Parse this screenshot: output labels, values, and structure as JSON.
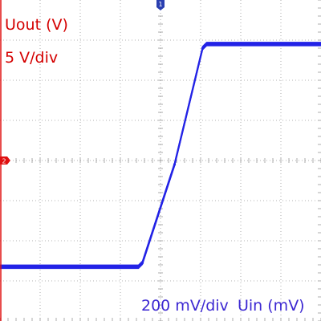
{
  "colors": {
    "background": "#ffffff",
    "grid": "#9a9a9a",
    "trace": "#2323e6",
    "y_label": "#d40000",
    "x_label": "#3c28d2",
    "ch2_marker": "#e01010",
    "trigger_marker": "#2a3fb0"
  },
  "markers": {
    "trigger_label": "1",
    "ch2_label": "2"
  },
  "chart_data": {
    "type": "line",
    "title": "",
    "ylabel": "Uout (V)",
    "y_scale_label": "5 V/div",
    "x_scale_label": "200 mV/div",
    "xlabel": "Uin (mV)",
    "x_scale": "200 mV/div",
    "y_scale": "5 V/div",
    "x_divisions": 8,
    "y_divisions": 8,
    "grid": true,
    "xlim_div": [
      -4,
      4
    ],
    "ylim_div": [
      -4,
      4
    ],
    "series": [
      {
        "x_div": [
          -4.0,
          -0.55,
          -0.45,
          0.35,
          1.05,
          1.15,
          4.0
        ],
        "y_div": [
          -2.65,
          -2.65,
          -2.55,
          -0.1,
          2.8,
          2.9,
          2.9
        ]
      }
    ]
  }
}
